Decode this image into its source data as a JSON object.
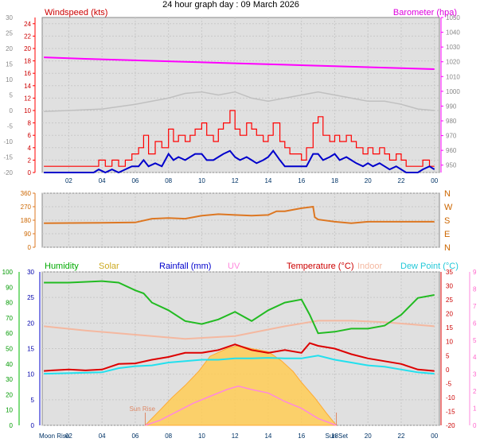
{
  "page": {
    "title": "24 hour graph day : 09 March 2026"
  },
  "colors": {
    "wind_speed": "#ff0000",
    "wind_avg": "#0000cc",
    "barometer": "#ff00ff",
    "temperature": "#dd0000",
    "humidity": "#00bb00",
    "solar": "#ffcc44",
    "indoor": "#f4b8a0",
    "dew_point": "#22e0ee",
    "uv": "#ff88dd",
    "rain": "#0000cc",
    "wind_dir": "#dd7722",
    "apparent": "#b0b0ff",
    "plot_bg": "#e0e0e0"
  },
  "chart_data": [
    {
      "type": "line",
      "name": "wind",
      "title": "24 hour graph day : 09 March 2026",
      "left_label": "Windspeed (kts)",
      "right_label": "Barometer (hpa)",
      "x_ticks": [
        "02",
        "04",
        "06",
        "08",
        "10",
        "12",
        "14",
        "16",
        "18",
        "20",
        "22",
        "00"
      ],
      "x_hours": [
        2,
        4,
        6,
        8,
        10,
        12,
        14,
        16,
        18,
        20,
        22,
        24
      ],
      "x_range_hours": [
        0.4,
        24.3
      ],
      "y_left_ticks": [
        0,
        2,
        4,
        6,
        8,
        10,
        12,
        14,
        16,
        18,
        20,
        22,
        24
      ],
      "y_left_range": [
        0,
        25
      ],
      "y_right_ticks": [
        950,
        960,
        970,
        980,
        990,
        1000,
        1010,
        1020,
        1030,
        1040,
        1050
      ],
      "y_right_range": [
        945,
        1050
      ],
      "y_outer_ticks": [
        -20,
        -15,
        -10,
        -5,
        0,
        5,
        10,
        15,
        20,
        25,
        30
      ],
      "gust_points": [
        [
          0.5,
          1
        ],
        [
          1.0,
          1
        ],
        [
          2.0,
          1
        ],
        [
          3.0,
          1
        ],
        [
          3.5,
          1
        ],
        [
          3.8,
          2
        ],
        [
          4.2,
          1
        ],
        [
          4.6,
          2
        ],
        [
          5.0,
          1
        ],
        [
          5.4,
          2
        ],
        [
          5.8,
          3
        ],
        [
          6.2,
          4
        ],
        [
          6.5,
          6
        ],
        [
          6.8,
          3
        ],
        [
          7.2,
          5
        ],
        [
          7.6,
          4
        ],
        [
          8.0,
          7
        ],
        [
          8.3,
          5
        ],
        [
          8.6,
          6
        ],
        [
          9.0,
          5
        ],
        [
          9.3,
          6
        ],
        [
          9.6,
          7
        ],
        [
          10.0,
          8
        ],
        [
          10.3,
          6
        ],
        [
          10.7,
          5
        ],
        [
          11.0,
          7
        ],
        [
          11.3,
          8
        ],
        [
          11.7,
          10
        ],
        [
          12.0,
          7
        ],
        [
          12.3,
          6
        ],
        [
          12.7,
          8
        ],
        [
          13.0,
          7
        ],
        [
          13.3,
          6
        ],
        [
          13.7,
          5
        ],
        [
          14.0,
          6
        ],
        [
          14.3,
          8
        ],
        [
          14.7,
          5
        ],
        [
          15.0,
          4
        ],
        [
          15.3,
          3
        ],
        [
          15.7,
          3
        ],
        [
          16.0,
          2
        ],
        [
          16.3,
          4
        ],
        [
          16.7,
          8
        ],
        [
          17.0,
          9
        ],
        [
          17.3,
          6
        ],
        [
          17.7,
          5
        ],
        [
          18.0,
          6
        ],
        [
          18.3,
          5
        ],
        [
          18.7,
          6
        ],
        [
          19.0,
          5
        ],
        [
          19.3,
          4
        ],
        [
          19.7,
          3
        ],
        [
          20.0,
          4
        ],
        [
          20.3,
          3
        ],
        [
          20.7,
          4
        ],
        [
          21.0,
          3
        ],
        [
          21.3,
          2
        ],
        [
          21.7,
          3
        ],
        [
          22.0,
          2
        ],
        [
          22.3,
          1
        ],
        [
          22.7,
          1
        ],
        [
          23.0,
          1
        ],
        [
          23.3,
          2
        ],
        [
          23.7,
          1
        ],
        [
          24.0,
          1
        ]
      ],
      "avg_points": [
        [
          0.5,
          0
        ],
        [
          1.0,
          0
        ],
        [
          2.0,
          0
        ],
        [
          3.0,
          0
        ],
        [
          3.5,
          0
        ],
        [
          3.8,
          0.5
        ],
        [
          4.2,
          0
        ],
        [
          4.6,
          0.5
        ],
        [
          5.0,
          0
        ],
        [
          5.4,
          0.5
        ],
        [
          5.8,
          1
        ],
        [
          6.2,
          1
        ],
        [
          6.5,
          2
        ],
        [
          6.8,
          1
        ],
        [
          7.2,
          1.5
        ],
        [
          7.6,
          1
        ],
        [
          8.0,
          3
        ],
        [
          8.3,
          2
        ],
        [
          8.6,
          2.5
        ],
        [
          9.0,
          2
        ],
        [
          9.3,
          2.5
        ],
        [
          9.6,
          3
        ],
        [
          10.0,
          3
        ],
        [
          10.3,
          2
        ],
        [
          10.7,
          2
        ],
        [
          11.0,
          2.5
        ],
        [
          11.3,
          3
        ],
        [
          11.7,
          3.5
        ],
        [
          12.0,
          2.5
        ],
        [
          12.3,
          2
        ],
        [
          12.7,
          2.5
        ],
        [
          13.0,
          2
        ],
        [
          13.3,
          1.5
        ],
        [
          13.7,
          2
        ],
        [
          14.0,
          2.5
        ],
        [
          14.3,
          3.5
        ],
        [
          14.7,
          2
        ],
        [
          15.0,
          1
        ],
        [
          15.3,
          1
        ],
        [
          15.7,
          1
        ],
        [
          16.0,
          1
        ],
        [
          16.3,
          1
        ],
        [
          16.7,
          3
        ],
        [
          17.0,
          3
        ],
        [
          17.3,
          2
        ],
        [
          17.7,
          2.5
        ],
        [
          18.0,
          3
        ],
        [
          18.3,
          2
        ],
        [
          18.7,
          2.5
        ],
        [
          19.0,
          2
        ],
        [
          19.3,
          1.5
        ],
        [
          19.7,
          1
        ],
        [
          20.0,
          1.5
        ],
        [
          20.3,
          1
        ],
        [
          20.7,
          1.5
        ],
        [
          21.0,
          1
        ],
        [
          21.3,
          0.5
        ],
        [
          21.7,
          1
        ],
        [
          22.0,
          0.5
        ],
        [
          22.3,
          0
        ],
        [
          22.7,
          0
        ],
        [
          23.0,
          0
        ],
        [
          23.3,
          0.5
        ],
        [
          23.7,
          1
        ],
        [
          24.0,
          0.5
        ]
      ],
      "barometer_points": [
        [
          0.5,
          1023
        ],
        [
          3,
          1022
        ],
        [
          6,
          1021
        ],
        [
          9,
          1020
        ],
        [
          12,
          1019
        ],
        [
          15,
          1018
        ],
        [
          18,
          1017
        ],
        [
          21,
          1016
        ],
        [
          24,
          1015
        ]
      ],
      "apparent_points": [
        [
          0.5,
          -0.3
        ],
        [
          2,
          0
        ],
        [
          4,
          0.5
        ],
        [
          6,
          2
        ],
        [
          8,
          4
        ],
        [
          9,
          5.5
        ],
        [
          10,
          6
        ],
        [
          11,
          5
        ],
        [
          12,
          6
        ],
        [
          13,
          4
        ],
        [
          14,
          3
        ],
        [
          15,
          4
        ],
        [
          16,
          5
        ],
        [
          17,
          6
        ],
        [
          18,
          5
        ],
        [
          19,
          4
        ],
        [
          20,
          3
        ],
        [
          21,
          3
        ],
        [
          22,
          2
        ],
        [
          23,
          0.5
        ],
        [
          24,
          0
        ]
      ]
    },
    {
      "type": "line",
      "name": "wind_direction",
      "y_left_ticks": [
        0,
        90,
        180,
        270,
        360
      ],
      "y_left_range": [
        0,
        360
      ],
      "y_right_ticks": [
        "N",
        "E",
        "S",
        "W",
        "N"
      ],
      "x_range_hours": [
        0.4,
        24.3
      ],
      "points": [
        [
          0.5,
          160
        ],
        [
          3,
          162
        ],
        [
          6,
          165
        ],
        [
          7,
          190
        ],
        [
          8,
          195
        ],
        [
          9,
          190
        ],
        [
          10,
          210
        ],
        [
          11,
          220
        ],
        [
          12,
          215
        ],
        [
          13,
          210
        ],
        [
          14,
          215
        ],
        [
          14.5,
          240
        ],
        [
          15,
          240
        ],
        [
          16,
          260
        ],
        [
          16.7,
          270
        ],
        [
          16.8,
          200
        ],
        [
          17,
          185
        ],
        [
          18,
          170
        ],
        [
          19,
          160
        ],
        [
          20,
          170
        ],
        [
          22,
          170
        ],
        [
          24,
          170
        ]
      ]
    },
    {
      "type": "line",
      "name": "temperature_humidity",
      "legend": [
        "Humidity",
        "Solar",
        "Rainfall (mm)",
        "UV",
        "Temperature (°C)",
        "Indoor",
        "Dew Point (°C)"
      ],
      "x_ticks": [
        "02",
        "04",
        "06",
        "08",
        "10",
        "12",
        "14",
        "16",
        "18",
        "20",
        "22",
        "00"
      ],
      "x_hours": [
        2,
        4,
        6,
        8,
        10,
        12,
        14,
        16,
        18,
        20,
        22,
        24
      ],
      "x_range_hours": [
        0.4,
        24.3
      ],
      "y_humidity_ticks": [
        0,
        10,
        20,
        30,
        40,
        50,
        60,
        70,
        80,
        90,
        100
      ],
      "y_humidity_range": [
        0,
        100
      ],
      "y_rain_ticks": [
        0,
        5,
        10,
        15,
        20,
        25,
        30
      ],
      "y_rain_range": [
        0,
        30
      ],
      "y_uv_ticks": [
        0,
        1,
        2,
        3,
        4,
        5,
        6,
        7,
        8,
        9
      ],
      "y_uv_range": [
        0,
        9
      ],
      "y_temp_ticks": [
        -20,
        -15,
        -10,
        -5,
        0,
        5,
        10,
        15,
        20,
        25,
        30,
        35
      ],
      "y_temp_range": [
        -20,
        35
      ],
      "event_labels": [
        "Moon Rise",
        "Sun Rise",
        "Sun Set"
      ],
      "event_hours": [
        0.8,
        6.6,
        18.1
      ],
      "humidity_points": [
        [
          0.5,
          93
        ],
        [
          2,
          93
        ],
        [
          4,
          94
        ],
        [
          5,
          93
        ],
        [
          6,
          88
        ],
        [
          6.5,
          86
        ],
        [
          7,
          80
        ],
        [
          8,
          75
        ],
        [
          9,
          68
        ],
        [
          10,
          66
        ],
        [
          11,
          69
        ],
        [
          12,
          74
        ],
        [
          13,
          68
        ],
        [
          14,
          75
        ],
        [
          15,
          80
        ],
        [
          16,
          82
        ],
        [
          16.5,
          72
        ],
        [
          17,
          60
        ],
        [
          18,
          61
        ],
        [
          19,
          63
        ],
        [
          20,
          63
        ],
        [
          21,
          65
        ],
        [
          22,
          72
        ],
        [
          23,
          83
        ],
        [
          24,
          85
        ]
      ],
      "temperature_points": [
        [
          0.5,
          -0.5
        ],
        [
          1,
          -0.3
        ],
        [
          2,
          0
        ],
        [
          3,
          -0.3
        ],
        [
          4,
          0
        ],
        [
          5,
          2
        ],
        [
          6,
          2.2
        ],
        [
          7,
          3.5
        ],
        [
          8,
          4.5
        ],
        [
          9,
          6
        ],
        [
          10,
          6
        ],
        [
          11,
          7
        ],
        [
          12,
          9
        ],
        [
          13,
          7
        ],
        [
          14,
          6
        ],
        [
          15,
          7
        ],
        [
          16,
          6
        ],
        [
          16.5,
          9.5
        ],
        [
          17,
          8.5
        ],
        [
          18,
          7.5
        ],
        [
          19,
          5.5
        ],
        [
          20,
          4
        ],
        [
          21,
          3
        ],
        [
          22,
          2
        ],
        [
          23,
          0
        ],
        [
          24,
          -0.5
        ]
      ],
      "dew_point_points": [
        [
          0.5,
          -1.5
        ],
        [
          2,
          -1.3
        ],
        [
          4,
          -1
        ],
        [
          5,
          0.5
        ],
        [
          6,
          1.2
        ],
        [
          7,
          1.5
        ],
        [
          8,
          2.5
        ],
        [
          9,
          3
        ],
        [
          10,
          3.5
        ],
        [
          11,
          3.5
        ],
        [
          12,
          4
        ],
        [
          13,
          4
        ],
        [
          14,
          4.2
        ],
        [
          15,
          4
        ],
        [
          16,
          4
        ],
        [
          17,
          5
        ],
        [
          18,
          3.5
        ],
        [
          19,
          2.5
        ],
        [
          20,
          1.5
        ],
        [
          21,
          1
        ],
        [
          22,
          0
        ],
        [
          23,
          -1
        ],
        [
          24,
          -1.5
        ]
      ],
      "indoor_points": [
        [
          0.5,
          15.5
        ],
        [
          3,
          14
        ],
        [
          6,
          12.5
        ],
        [
          9,
          11
        ],
        [
          12,
          12
        ],
        [
          15,
          15.5
        ],
        [
          17,
          17.5
        ],
        [
          19,
          17.5
        ],
        [
          21,
          17
        ],
        [
          24,
          15.5
        ]
      ],
      "solar_points": [
        [
          6.6,
          0
        ],
        [
          7.5,
          10
        ],
        [
          8.2,
          18
        ],
        [
          9,
          26
        ],
        [
          9.8,
          35
        ],
        [
          10.5,
          45
        ],
        [
          11.5,
          50
        ],
        [
          12.2,
          52
        ],
        [
          13,
          50
        ],
        [
          14,
          48
        ],
        [
          14.8,
          42
        ],
        [
          15.5,
          35
        ],
        [
          16,
          28
        ],
        [
          16.8,
          18
        ],
        [
          17.5,
          8
        ],
        [
          18.1,
          0
        ]
      ],
      "uv_points": [
        [
          6.6,
          0
        ],
        [
          7.5,
          0.3
        ],
        [
          8.5,
          0.8
        ],
        [
          9.5,
          1.3
        ],
        [
          10.5,
          1.7
        ],
        [
          11.5,
          2.1
        ],
        [
          12.2,
          2.3
        ],
        [
          13,
          2.1
        ],
        [
          14,
          1.9
        ],
        [
          15,
          1.4
        ],
        [
          16,
          1.0
        ],
        [
          17,
          0.4
        ],
        [
          18.1,
          0
        ]
      ],
      "solar_range": [
        0,
        100
      ]
    }
  ]
}
